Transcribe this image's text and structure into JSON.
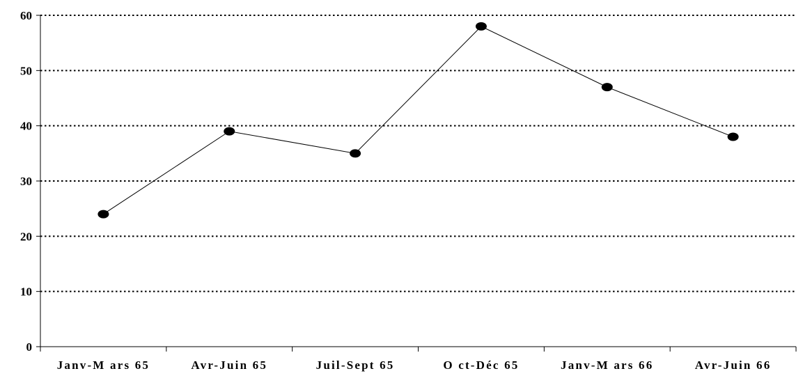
{
  "chart_data": {
    "type": "line",
    "categories": [
      "Janv-M ars 65",
      "Avr-Juin 65",
      "Juil-Sept 65",
      "O ct-Déc 65",
      "Janv-M ars 66",
      "Avr-Juin 66"
    ],
    "series": [
      {
        "values": [
          24,
          39,
          35,
          58,
          47,
          38
        ]
      }
    ],
    "ylim": [
      0,
      60
    ],
    "yticks": [
      0,
      10,
      20,
      30,
      40,
      50,
      60
    ],
    "grid": true,
    "grid_style": "dotted",
    "title": "",
    "xlabel": "",
    "ylabel": "",
    "colors": {
      "line": "#000000",
      "marker": "#000000",
      "grid": "#000000",
      "axis": "#000000"
    }
  }
}
